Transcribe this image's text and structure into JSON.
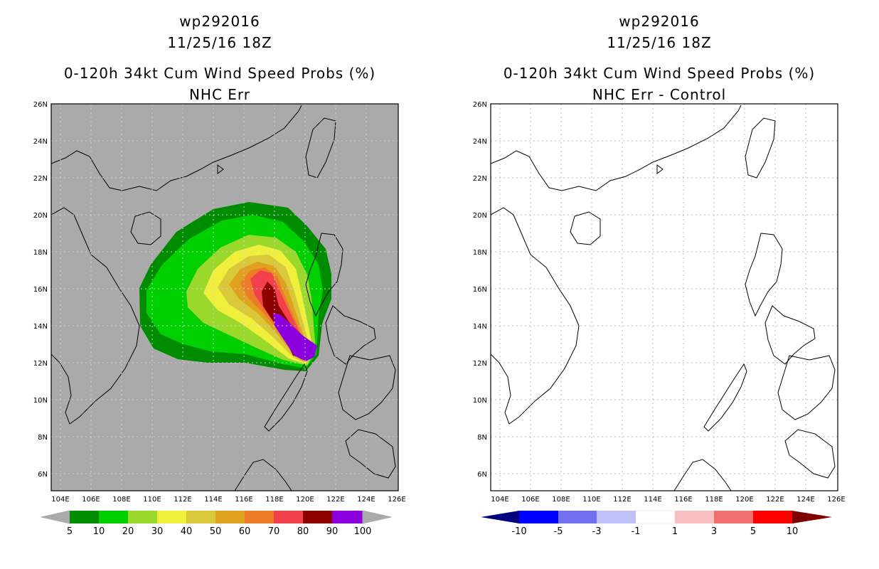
{
  "left_panel": {
    "title_storm": "wp292016",
    "title_time": "11/25/16 18Z",
    "title_product": "0-120h 34kt Cum Wind Speed Probs (%)",
    "title_variant": "NHC Err",
    "colorbar": {
      "labels": [
        "5",
        "10",
        "20",
        "30",
        "40",
        "50",
        "60",
        "70",
        "80",
        "90",
        "100"
      ],
      "colors": [
        "#008c00",
        "#00d000",
        "#9ad92c",
        "#f0f03c",
        "#d8c83a",
        "#e0a020",
        "#ec7c28",
        "#f2404c",
        "#8c0000",
        "#8c00e0"
      ],
      "end_color": "#aaaaaa"
    }
  },
  "right_panel": {
    "title_storm": "wp292016",
    "title_time": "11/25/16 18Z",
    "title_product": "0-120h 34kt Cum Wind Speed Probs (%)",
    "title_variant": "NHC Err - Control",
    "colorbar": {
      "labels": [
        "-10",
        "-5",
        "-3",
        "-1",
        "1",
        "3",
        "5",
        "10"
      ],
      "colors": [
        "#1010a0",
        "#0000ff",
        "#7070ee",
        "#c0c0f8",
        "#ffffff",
        "#f8c0c0",
        "#f07070",
        "#ff0000",
        "#900000"
      ],
      "left_end_color": "#000080",
      "right_end_color": "#800000"
    }
  },
  "map": {
    "lat_labels": [
      "26N",
      "24N",
      "22N",
      "20N",
      "18N",
      "16N",
      "14N",
      "12N",
      "10N",
      "8N",
      "6N"
    ],
    "lon_labels": [
      "104E",
      "106E",
      "108E",
      "110E",
      "112E",
      "114E",
      "116E",
      "118E",
      "120E",
      "122E",
      "124E",
      "126E"
    ],
    "left_background": "#aaaaaa",
    "right_background": "#ffffff"
  }
}
